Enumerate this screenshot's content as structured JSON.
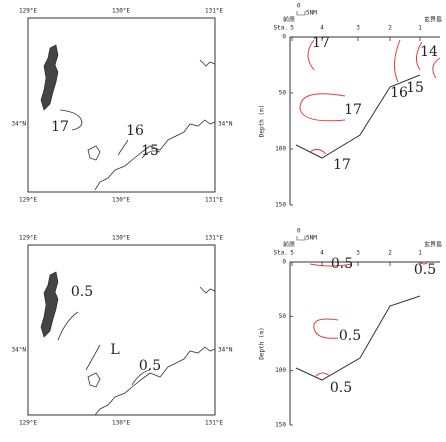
{
  "panels": [
    {
      "map": {
        "lon_labels": [
          "129°E",
          "130°E",
          "131°E"
        ],
        "lat_label": "34°N",
        "contour_labels": [
          "17",
          "16",
          "15"
        ]
      },
      "section": {
        "scale_labels": [
          "0",
          "5NM"
        ],
        "left_place": "前原",
        "right_place": "玄界島",
        "station_label": "Sta.",
        "stations": [
          "5",
          "4",
          "3",
          "2",
          "1"
        ],
        "y_label": "Depth (m)",
        "depth_ticks": [
          0,
          50,
          100,
          150
        ],
        "contour_labels": [
          "17",
          "14",
          "17",
          "16",
          "15",
          "17"
        ]
      }
    },
    {
      "map": {
        "lon_labels": [
          "129°E",
          "130°E",
          "131°E"
        ],
        "lat_label": "34°N",
        "contour_labels": [
          "0.5",
          "L",
          "0.5"
        ]
      },
      "section": {
        "scale_labels": [
          "0",
          "5NM"
        ],
        "left_place": "前原",
        "right_place": "玄界島",
        "station_label": "Sta.",
        "stations": [
          "5",
          "4",
          "3",
          "2",
          "1"
        ],
        "y_label": "Depth (m)",
        "depth_ticks": [
          0,
          50,
          100,
          150
        ],
        "contour_labels": [
          "0.5",
          "0.5",
          "0.5",
          "0.5"
        ]
      }
    }
  ]
}
